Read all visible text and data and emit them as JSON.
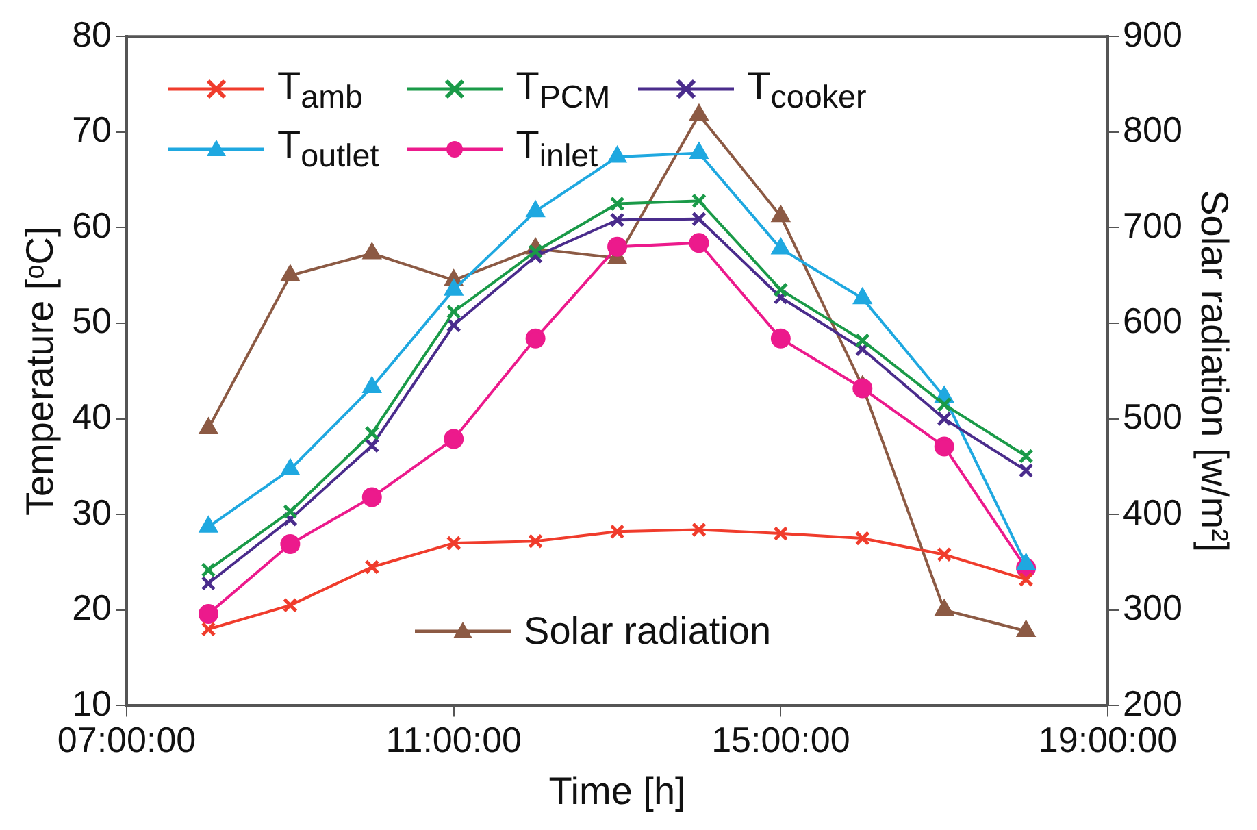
{
  "chart_data": {
    "type": "line",
    "xlabel": "Time [h]",
    "ylabel": "Temperature [ᵒC]",
    "y2label": "Solar radiation [w/m²]",
    "x": [
      8,
      9,
      10,
      11,
      12,
      13,
      14,
      15,
      16,
      17,
      18
    ],
    "xlim": [
      7,
      19
    ],
    "xticks": [
      {
        "value": 7,
        "label": "07:00:00"
      },
      {
        "value": 11,
        "label": "11:00:00"
      },
      {
        "value": 15,
        "label": "15:00:00"
      },
      {
        "value": 19,
        "label": "19:00:00"
      }
    ],
    "ylim": [
      10,
      80
    ],
    "yticks": [
      10,
      20,
      30,
      40,
      50,
      60,
      70,
      80
    ],
    "y2lim": [
      200,
      900
    ],
    "y2ticks": [
      200,
      300,
      400,
      500,
      600,
      700,
      800,
      900
    ],
    "grid": false,
    "legend": "top",
    "series": [
      {
        "name": "T$_{amb}$",
        "color": "#f03c2c",
        "marker": "cross",
        "values": [
          18,
          20.5,
          24.5,
          27,
          27.2,
          28.2,
          28.4,
          28,
          27.5,
          25.8,
          23.2
        ]
      },
      {
        "name": "T$_{PCM}$",
        "color": "#1a9a48",
        "marker": "cross",
        "values": [
          24.2,
          30.3,
          38.5,
          51.2,
          57.5,
          62.5,
          62.8,
          53.5,
          48.2,
          41.5,
          36.1
        ]
      },
      {
        "name": "T$_{cooker}$",
        "color": "#4a2c8c",
        "marker": "cross",
        "values": [
          22.8,
          29.5,
          37.2,
          49.8,
          57,
          60.8,
          60.9,
          52.7,
          47.3,
          40,
          34.6
        ]
      },
      {
        "name": "T$_{outlet}$",
        "color": "#1fa8e0",
        "marker": "triangle",
        "values": [
          28.7,
          34.7,
          43.3,
          53.5,
          61.7,
          67.4,
          67.8,
          57.8,
          52.6,
          42.3,
          24.8
        ]
      },
      {
        "name": "T$_{inlet}$",
        "color": "#ec1a8c",
        "marker": "circle",
        "values": [
          19.6,
          26.9,
          31.8,
          37.9,
          48.4,
          58,
          58.4,
          48.4,
          43.2,
          37.1,
          24.4
        ]
      },
      {
        "name": "Solar radiation",
        "color": "#8c5a44",
        "marker": "triangle",
        "axis": "y2",
        "values": [
          490,
          650,
          673,
          645,
          678,
          668,
          818,
          712,
          534,
          300,
          278
        ]
      }
    ]
  }
}
